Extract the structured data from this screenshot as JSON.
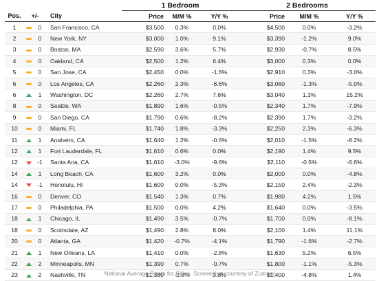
{
  "table": {
    "group_headers": {
      "one_bedroom": "1 Bedroom",
      "two_bedrooms": "2 Bedrooms"
    },
    "columns": {
      "pos": "Pos.",
      "change": "+/-",
      "city": "City",
      "price1": "Price",
      "mm1": "M/M %",
      "yy1": "Y/Y %",
      "price2": "Price",
      "mm2": "M/M %",
      "yy2": "Y/Y %"
    },
    "indicator_colors": {
      "same": "#f5b335",
      "up": "#46a35e",
      "down": "#e0504f"
    },
    "indicator_icons": {
      "same": "dash-icon",
      "up": "up-triangle-icon",
      "down": "down-triangle-icon"
    },
    "rows": [
      {
        "pos": "1",
        "trend": "same",
        "change": "0",
        "city": "San Francisco, CA",
        "price1": "$3,500",
        "mm1": "0.3%",
        "yy1": "0.0%",
        "price2": "$4,500",
        "mm2": "0.0%",
        "yy2": "-3.2%"
      },
      {
        "pos": "2",
        "trend": "same",
        "change": "0",
        "city": "New York, NY",
        "price1": "$3,000",
        "mm1": "1.0%",
        "yy1": "9.1%",
        "price2": "$3,390",
        "mm2": "-1.2%",
        "yy2": "9.0%"
      },
      {
        "pos": "3",
        "trend": "same",
        "change": "0",
        "city": "Boston, MA",
        "price1": "$2,590",
        "mm1": "3.6%",
        "yy1": "5.7%",
        "price2": "$2,930",
        "mm2": "-0.7%",
        "yy2": "8.5%"
      },
      {
        "pos": "4",
        "trend": "same",
        "change": "0",
        "city": "Oakland, CA",
        "price1": "$2,500",
        "mm1": "1.2%",
        "yy1": "6.4%",
        "price2": "$3,000",
        "mm2": "0.3%",
        "yy2": "0.0%"
      },
      {
        "pos": "5",
        "trend": "same",
        "change": "0",
        "city": "San Jose, CA",
        "price1": "$2,450",
        "mm1": "0.0%",
        "yy1": "-1.6%",
        "price2": "$2,910",
        "mm2": "0.3%",
        "yy2": "-3.0%"
      },
      {
        "pos": "6",
        "trend": "same",
        "change": "0",
        "city": "Los Angeles, CA",
        "price1": "$2,260",
        "mm1": "2.3%",
        "yy1": "-6.6%",
        "price2": "$3,060",
        "mm2": "-1.3%",
        "yy2": "-5.0%"
      },
      {
        "pos": "6",
        "trend": "up",
        "change": "1",
        "city": "Washington, DC",
        "price1": "$2,260",
        "mm1": "2.7%",
        "yy1": "7.6%",
        "price2": "$3,040",
        "mm2": "1.3%",
        "yy2": "15.2%"
      },
      {
        "pos": "8",
        "trend": "same",
        "change": "0",
        "city": "Seattle, WA",
        "price1": "$1,890",
        "mm1": "1.6%",
        "yy1": "-0.5%",
        "price2": "$2,340",
        "mm2": "1.7%",
        "yy2": "-7.9%"
      },
      {
        "pos": "9",
        "trend": "same",
        "change": "0",
        "city": "San Diego, CA",
        "price1": "$1,790",
        "mm1": "0.6%",
        "yy1": "-8.2%",
        "price2": "$2,390",
        "mm2": "1.7%",
        "yy2": "-3.2%"
      },
      {
        "pos": "10",
        "trend": "same",
        "change": "0",
        "city": "Miami, FL",
        "price1": "$1,740",
        "mm1": "1.8%",
        "yy1": "-3.3%",
        "price2": "$2,250",
        "mm2": "2.3%",
        "yy2": "-6.3%"
      },
      {
        "pos": "11",
        "trend": "up",
        "change": "1",
        "city": "Anaheim, CA",
        "price1": "$1,640",
        "mm1": "1.2%",
        "yy1": "-0.6%",
        "price2": "$2,010",
        "mm2": "-1.5%",
        "yy2": "-8.2%"
      },
      {
        "pos": "12",
        "trend": "up",
        "change": "1",
        "city": "Fort Lauderdale, FL",
        "price1": "$1,610",
        "mm1": "0.6%",
        "yy1": "0.0%",
        "price2": "$2,190",
        "mm2": "1.4%",
        "yy2": "9.5%"
      },
      {
        "pos": "12",
        "trend": "down",
        "change": "-1",
        "city": "Santa Ana, CA",
        "price1": "$1,610",
        "mm1": "-3.0%",
        "yy1": "-9.6%",
        "price2": "$2,110",
        "mm2": "-0.5%",
        "yy2": "-6.6%"
      },
      {
        "pos": "14",
        "trend": "up",
        "change": "1",
        "city": "Long Beach, CA",
        "price1": "$1,600",
        "mm1": "3.2%",
        "yy1": "0.0%",
        "price2": "$2,000",
        "mm2": "0.0%",
        "yy2": "-4.8%"
      },
      {
        "pos": "14",
        "trend": "down",
        "change": "-1",
        "city": "Honolulu, HI",
        "price1": "$1,600",
        "mm1": "0.0%",
        "yy1": "-5.3%",
        "price2": "$2,150",
        "mm2": "2.4%",
        "yy2": "-2.3%"
      },
      {
        "pos": "16",
        "trend": "same",
        "change": "0",
        "city": "Denver, CO",
        "price1": "$1,540",
        "mm1": "1.3%",
        "yy1": "0.7%",
        "price2": "$1,980",
        "mm2": "4.2%",
        "yy2": "1.5%"
      },
      {
        "pos": "17",
        "trend": "same",
        "change": "0",
        "city": "Philadelphia, PA",
        "price1": "$1,500",
        "mm1": "0.0%",
        "yy1": "4.2%",
        "price2": "$1,640",
        "mm2": "0.0%",
        "yy2": "-3.5%"
      },
      {
        "pos": "18",
        "trend": "up",
        "change": "1",
        "city": "Chicago, IL",
        "price1": "$1,490",
        "mm1": "3.5%",
        "yy1": "-0.7%",
        "price2": "$1,700",
        "mm2": "0.0%",
        "yy2": "-8.1%"
      },
      {
        "pos": "18",
        "trend": "same",
        "change": "0",
        "city": "Scottsdale, AZ",
        "price1": "$1,490",
        "mm1": "2.8%",
        "yy1": "8.0%",
        "price2": "$2,100",
        "mm2": "1.4%",
        "yy2": "11.1%"
      },
      {
        "pos": "20",
        "trend": "same",
        "change": "0",
        "city": "Atlanta, GA",
        "price1": "$1,420",
        "mm1": "-0.7%",
        "yy1": "-4.1%",
        "price2": "$1,790",
        "mm2": "-1.6%",
        "yy2": "-2.7%"
      },
      {
        "pos": "21",
        "trend": "up",
        "change": "1",
        "city": "New Orleans, LA",
        "price1": "$1,410",
        "mm1": "0.0%",
        "yy1": "-2.8%",
        "price2": "$1,630",
        "mm2": "5.2%",
        "yy2": "6.5%"
      },
      {
        "pos": "22",
        "trend": "up",
        "change": "2",
        "city": "Minneapolis, MN",
        "price1": "$1,390",
        "mm1": "0.7%",
        "yy1": "-0.7%",
        "price2": "$1,800",
        "mm2": "-1.1%",
        "yy2": "-5.3%"
      },
      {
        "pos": "23",
        "trend": "up",
        "change": "2",
        "city": "Nashville, TN",
        "price1": "$1,380",
        "mm1": "-2.8%",
        "yy1": "3.8%",
        "price2": "$1,400",
        "mm2": "-4.8%",
        "yy2": "1.4%"
      }
    ]
  },
  "caption": "National Average Rents for Cities. Screenshot courtesy of Zumper"
}
